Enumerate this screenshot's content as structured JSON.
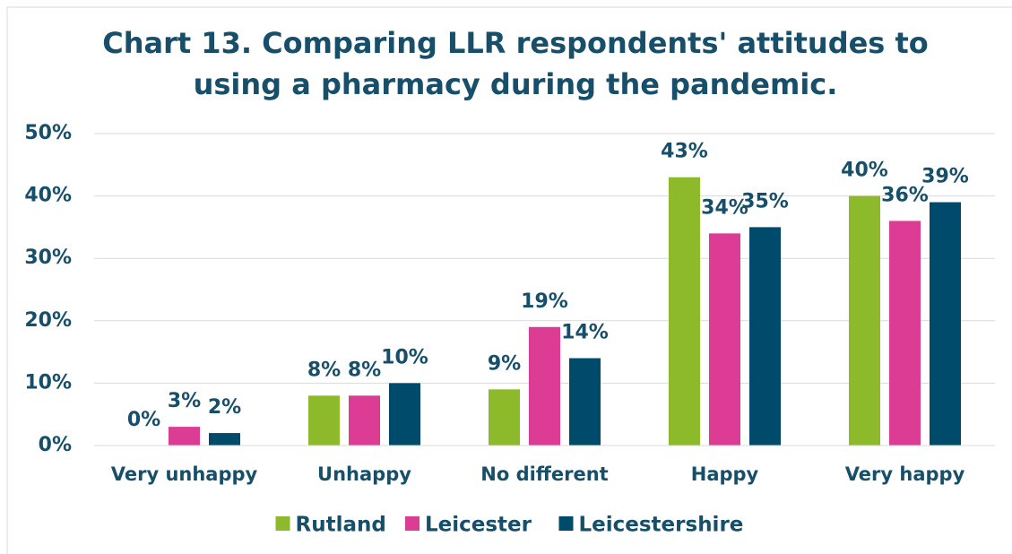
{
  "chart_data": {
    "type": "bar",
    "title": "Chart 13. Comparing LLR respondents' attitudes to",
    "subtitle": "using a pharmacy during the pandemic.",
    "categories": [
      "Very unhappy",
      "Unhappy",
      "No different",
      "Happy",
      "Very happy"
    ],
    "series": [
      {
        "name": "Rutland",
        "color": "#8dba2a",
        "values": [
          0,
          8,
          9,
          43,
          40
        ],
        "value_labels": [
          "0%",
          "8%",
          "9%",
          "43%",
          "40%"
        ]
      },
      {
        "name": "Leicester",
        "color": "#dc3c94",
        "values": [
          3,
          8,
          19,
          34,
          36
        ],
        "value_labels": [
          "3%",
          "8%",
          "19%",
          "34%",
          "36%"
        ]
      },
      {
        "name": "Leicestershire",
        "color": "#004b6b",
        "values": [
          2,
          10,
          14,
          35,
          39
        ],
        "value_labels": [
          "2%",
          "10%",
          "14%",
          "35%",
          "39%"
        ]
      }
    ],
    "ylim": [
      0,
      50
    ],
    "yticks": [
      {
        "value": 0,
        "label": "0%"
      },
      {
        "value": 10,
        "label": "10%"
      },
      {
        "value": 20,
        "label": "20%"
      },
      {
        "value": 30,
        "label": "30%"
      },
      {
        "value": 40,
        "label": "40%"
      },
      {
        "value": 50,
        "label": "50%"
      }
    ],
    "grid": true,
    "legend": "bottom"
  }
}
